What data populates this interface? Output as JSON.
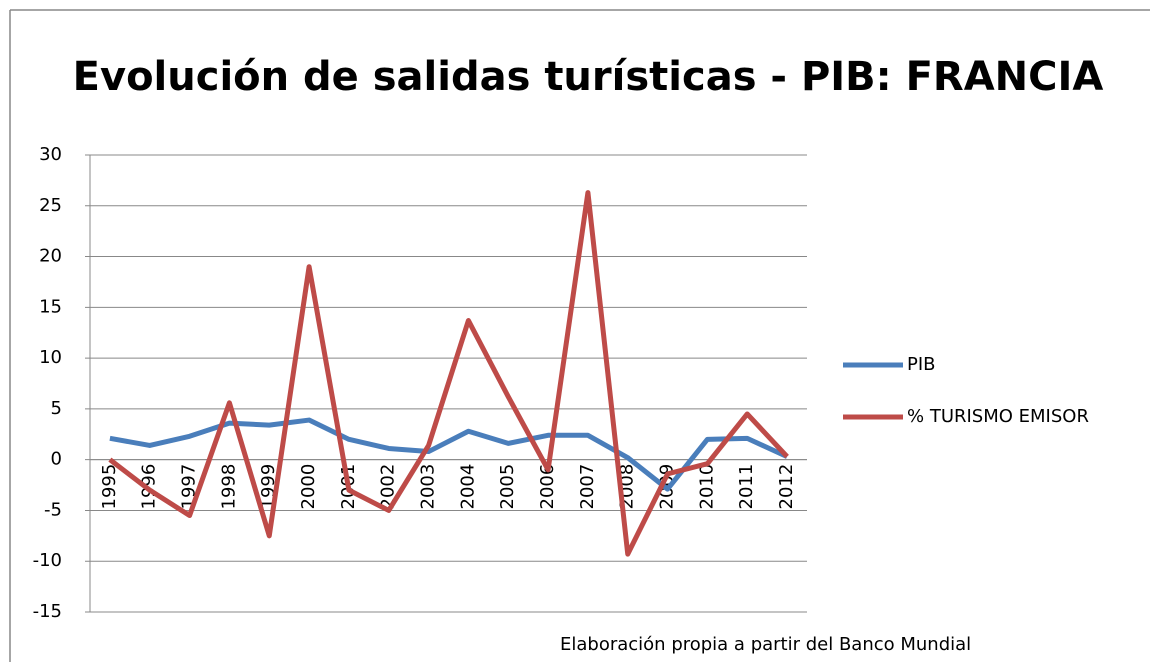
{
  "chart_data": {
    "type": "line",
    "title": "Evolución de salidas turísticas - PIB: FRANCIA",
    "source": "Elaboración propia a partir del  Banco  Mundial",
    "categories": [
      "1995",
      "1996",
      "1997",
      "1998",
      "1999",
      "2000",
      "2001",
      "2002",
      "2003",
      "2004",
      "2005",
      "2006",
      "2007",
      "2008",
      "2009",
      "2010",
      "2011",
      "2012"
    ],
    "series": [
      {
        "name": "PIB",
        "color": "#4a7ebb",
        "values": [
          2.1,
          1.4,
          2.3,
          3.6,
          3.4,
          3.9,
          2.0,
          1.1,
          0.8,
          2.8,
          1.6,
          2.4,
          2.4,
          0.2,
          -2.9,
          2.0,
          2.1,
          0.3
        ]
      },
      {
        "name": "% TURISMO EMISOR",
        "color": "#be4b48",
        "values": [
          0,
          -3,
          -5.5,
          5.6,
          -7.5,
          19,
          -3,
          -5,
          1.4,
          13.7,
          6.2,
          -1,
          26.3,
          -9.3,
          -1.4,
          -0.4,
          4.5,
          0.3
        ]
      }
    ],
    "ylim": [
      -15,
      30
    ],
    "yticks": [
      -15,
      -10,
      -5,
      0,
      5,
      10,
      15,
      20,
      25,
      30
    ],
    "grid": true,
    "legend": "right"
  }
}
